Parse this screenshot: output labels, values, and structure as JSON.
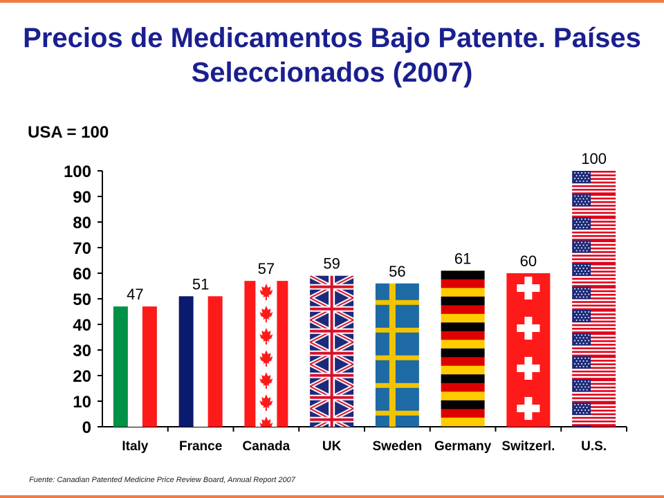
{
  "title": "Precios de Medicamentos Bajo Patente. Países Seleccionados (2007)",
  "subtitle": "USA = 100",
  "source": "Fuente: Canadian Patented Medicine Price Review Board, Annual Report 2007",
  "colors": {
    "title": "#1a1f8f",
    "accent_border": "#f07c45"
  },
  "chart_data": {
    "type": "bar",
    "categories": [
      "Italy",
      "France",
      "Canada",
      "UK",
      "Sweden",
      "Germany",
      "Switzerl.",
      "U.S."
    ],
    "values": [
      47,
      51,
      57,
      59,
      56,
      61,
      60,
      100
    ],
    "data_labels": [
      "47",
      "51",
      "57",
      "59",
      "56",
      "61",
      "60",
      "100"
    ],
    "bar_fill": [
      "italy-flag",
      "france-flag",
      "canada-flag",
      "uk-flag",
      "sweden-flag",
      "germany-flag",
      "switzerland-flag",
      "us-flag"
    ],
    "ylim": [
      0,
      100
    ],
    "yticks": [
      0,
      10,
      20,
      30,
      40,
      50,
      60,
      70,
      80,
      90,
      100
    ],
    "xlabel": "",
    "ylabel": "",
    "grid": false,
    "legend": "none"
  }
}
